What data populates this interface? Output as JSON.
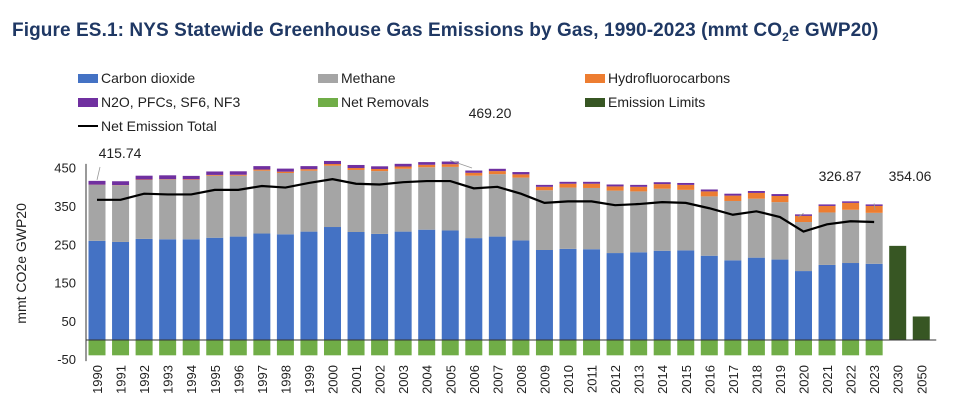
{
  "chart_data": {
    "type": "bar",
    "title": "Figure ES.1: NYS Statewide Greenhouse Gas Emissions by Gas, 1990-2023 (mmt CO",
    "title_sub": "2",
    "title_tail": "e GWP20)",
    "xlabel": "",
    "ylabel": "mmt CO2e GWP20",
    "ylim": [
      -50,
      450
    ],
    "yticks": [
      "450",
      "350",
      "250",
      "150",
      "50",
      "-50"
    ],
    "ytick_values": [
      450,
      350,
      250,
      150,
      50,
      -50
    ],
    "grid": false,
    "legend_position": "top",
    "colors": {
      "co2": "#4472c4",
      "methane": "#a5a5a5",
      "hfc": "#ed7d31",
      "other": "#7030a0",
      "removals": "#70ad47",
      "limits": "#375623",
      "net": "#000000"
    },
    "legend": [
      {
        "key": "co2",
        "label": "Carbon dioxide",
        "kind": "box"
      },
      {
        "key": "methane",
        "label": "Methane",
        "kind": "box"
      },
      {
        "key": "hfc",
        "label": "Hydrofluorocarbons",
        "kind": "box"
      },
      {
        "key": "other",
        "label": "N2O, PFCs, SF6, NF3",
        "kind": "box"
      },
      {
        "key": "removals",
        "label": "Net Removals",
        "kind": "box"
      },
      {
        "key": "limits",
        "label": "Emission Limits",
        "kind": "box"
      },
      {
        "key": "net",
        "label": "Net Emission Total",
        "kind": "line"
      }
    ],
    "categories": [
      "1990",
      "1991",
      "1992",
      "1993",
      "1994",
      "1995",
      "1996",
      "1997",
      "1998",
      "1999",
      "2000",
      "2001",
      "2002",
      "2003",
      "2004",
      "2005",
      "2006",
      "2007",
      "2008",
      "2009",
      "2010",
      "2011",
      "2012",
      "2013",
      "2014",
      "2015",
      "2016",
      "2017",
      "2018",
      "2019",
      "2020",
      "2021",
      "2022",
      "2023",
      "2030",
      "2050"
    ],
    "series": [
      {
        "name": "Carbon dioxide",
        "key": "co2",
        "values": [
          259,
          256,
          264,
          263,
          263,
          267,
          270,
          278,
          276,
          283,
          295,
          282,
          277,
          283,
          288,
          286,
          266,
          270,
          260,
          235,
          238,
          237,
          227,
          229,
          233,
          234,
          220,
          208,
          215,
          210,
          180,
          196,
          201,
          199,
          null,
          null
        ]
      },
      {
        "name": "Methane",
        "key": "methane",
        "values": [
          146,
          148,
          154,
          156,
          155,
          162,
          159,
          164,
          160,
          159,
          160,
          162,
          164,
          164,
          163,
          166,
          163,
          163,
          164,
          156,
          160,
          160,
          163,
          159,
          162,
          158,
          155,
          155,
          154,
          150,
          128,
          137,
          139,
          133,
          null,
          null
        ]
      },
      {
        "name": "Hydrofluorocarbons",
        "key": "hfc",
        "values": [
          0.5,
          0.5,
          1,
          1,
          1.5,
          2,
          2.5,
          3,
          3.5,
          4,
          4.5,
          5,
          5.5,
          6,
          6.5,
          7,
          7.5,
          8,
          8.5,
          9,
          10,
          11,
          11,
          12,
          12,
          13,
          13,
          14,
          15,
          16,
          16,
          17,
          18,
          18,
          null,
          null
        ]
      },
      {
        "name": "N2O, PFCs, SF6, NF3",
        "key": "other",
        "values": [
          10,
          10,
          10,
          10,
          9,
          9,
          9,
          9,
          8,
          8,
          8,
          8,
          7,
          7,
          7,
          7,
          6,
          6,
          6,
          5,
          5,
          5,
          5,
          5,
          5,
          5,
          5,
          5,
          5,
          5,
          4,
          4,
          4,
          4,
          null,
          null
        ]
      },
      {
        "name": "Net Removals",
        "key": "removals",
        "values": [
          -40,
          -40,
          -40,
          -40,
          -40,
          -40,
          -40,
          -40,
          -40,
          -40,
          -40,
          -40,
          -40,
          -40,
          -40,
          -40,
          -40,
          -40,
          -40,
          -40,
          -40,
          -40,
          -40,
          -40,
          -40,
          -40,
          -40,
          -40,
          -40,
          -40,
          -40,
          -40,
          -40,
          -40,
          null,
          null
        ]
      },
      {
        "name": "Emission Limits",
        "key": "limits",
        "values": [
          null,
          null,
          null,
          null,
          null,
          null,
          null,
          null,
          null,
          null,
          null,
          null,
          null,
          null,
          null,
          null,
          null,
          null,
          null,
          null,
          null,
          null,
          null,
          null,
          null,
          null,
          null,
          null,
          null,
          null,
          null,
          null,
          null,
          null,
          245.8,
          61.4
        ]
      },
      {
        "name": "Net Emission Total",
        "key": "net",
        "type": "line",
        "values": [
          366,
          366,
          382,
          380,
          380,
          392,
          392,
          402,
          398,
          410,
          420,
          408,
          406,
          412,
          415,
          415,
          396,
          400,
          382,
          358,
          362,
          362,
          352,
          355,
          360,
          358,
          344,
          327,
          336,
          321,
          283,
          302,
          310,
          308,
          null,
          null
        ]
      }
    ],
    "annotations": [
      {
        "label": "415.74",
        "category": "1990"
      },
      {
        "label": "469.20",
        "category": "2005"
      },
      {
        "label": "326.87",
        "category": "2020"
      },
      {
        "label": "354.06",
        "category": "2023"
      }
    ]
  }
}
